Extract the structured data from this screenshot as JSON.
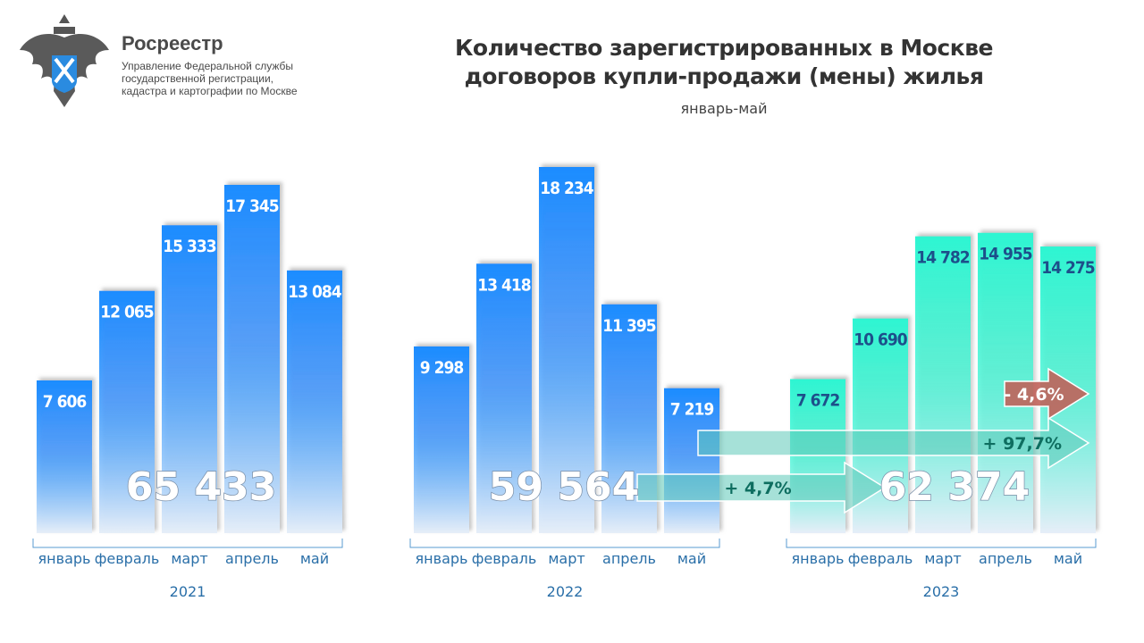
{
  "header": {
    "brand": "Росреестр",
    "subtitle_lines": [
      "Управление Федеральной службы",
      "государственной регистрации,",
      "кадастра и картографии по Москве"
    ],
    "title_lines": [
      "Количество зарегистрированных в Москве",
      "договоров купли-продажи (мены) жилья"
    ],
    "period": "январь-май"
  },
  "chart_data": {
    "type": "bar",
    "categories": [
      "январь",
      "февраль",
      "март",
      "апрель",
      "май"
    ],
    "series": [
      {
        "name": "2021",
        "values": [
          7606,
          12065,
          15333,
          17345,
          13084
        ],
        "labels": [
          "7 606",
          "12 065",
          "15 333",
          "17 345",
          "13 084"
        ],
        "total": "65 433",
        "color": "#1a8cff"
      },
      {
        "name": "2022",
        "values": [
          9298,
          13418,
          18234,
          11395,
          7219
        ],
        "labels": [
          "9 298",
          "13 418",
          "18 234",
          "11 395",
          "7 219"
        ],
        "total": "59 564",
        "color": "#1a8cff"
      },
      {
        "name": "2023",
        "values": [
          7672,
          10690,
          14782,
          14955,
          14275
        ],
        "labels": [
          "7 672",
          "10 690",
          "14 782",
          "14 955",
          "14 275"
        ],
        "total": "62 374",
        "color": "#2ef5d2"
      }
    ],
    "annotations": [
      {
        "text": "+ 4,7%",
        "from": "2022 total",
        "to": "2023 total",
        "color": "#5cc8b8"
      },
      {
        "text": "+ 97,7%",
        "from": "май 2022",
        "to": "май 2023",
        "color": "#5cc8b8"
      },
      {
        "text": "- 4,6%",
        "from": "апрель 2023",
        "to": "май 2023",
        "color": "#c0625a"
      }
    ],
    "grid": false,
    "legend": "none"
  }
}
